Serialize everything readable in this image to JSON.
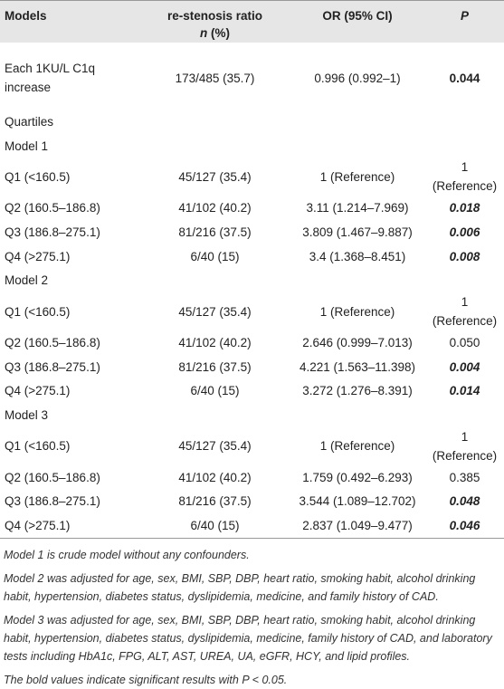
{
  "table": {
    "header": [
      "Models",
      {
        "text": "re-stenosis ratio",
        "variable": "n",
        "unit": "(%)"
      },
      "OR (95% CI)",
      "P"
    ],
    "rows": [
      [
        "Each 1KU/L C1q increase",
        "173/485 (35.7)",
        "0.996 (0.992–1)",
        "0.044"
      ],
      [
        "Quartiles"
      ],
      [
        "Model 1"
      ],
      [
        "Q1 (<160.5)",
        "45/127 (35.4)",
        "1 (Reference)",
        "1 (Reference)"
      ],
      [
        "Q2 (160.5–186.8)",
        "41/102 (40.2)",
        "3.11 (1.214–7.969)",
        "0.018"
      ],
      [
        "Q3 (186.8–275.1)",
        "81/216 (37.5)",
        "3.809 (1.467–9.887)",
        "0.006"
      ],
      [
        "Q4 (>275.1)",
        "6/40 (15)",
        "3.4 (1.368–8.451)",
        "0.008"
      ],
      [
        "Model 2"
      ],
      [
        "Q1 (<160.5)",
        "45/127 (35.4)",
        "1 (Reference)",
        "1 (Reference)"
      ],
      [
        "Q2 (160.5–186.8)",
        "41/102 (40.2)",
        "2.646 (0.999–7.013)",
        "0.050"
      ],
      [
        "Q3 (186.8–275.1)",
        "81/216 (37.5)",
        "4.221 (1.563–11.398)",
        "0.004"
      ],
      [
        "Q4 (>275.1)",
        "6/40 (15)",
        "3.272 (1.276–8.391)",
        "0.014"
      ],
      [
        "Model 3"
      ],
      [
        "Q1 (<160.5)",
        "45/127 (35.4)",
        "1 (Reference)",
        "1 (Reference)"
      ],
      [
        "Q2 (160.5–186.8)",
        "41/102 (40.2)",
        "1.759 (0.492–6.293)",
        "0.385"
      ],
      [
        "Q3 (186.8–275.1)",
        "81/216 (37.5)",
        "3.544 (1.089–12.702)",
        "0.048"
      ],
      [
        "Q4 (>275.1)",
        "6/40 (15)",
        "2.837 (1.049–9.477)",
        "0.046"
      ]
    ]
  },
  "footnotes": [
    "Model 1 is crude model without any confounders.",
    "Model 2 was adjusted for age, sex, BMI, SBP, DBP, heart ratio, smoking habit, alcohol drinking habit, hypertension, diabetes status, dyslipidemia, medicine, and family history of CAD.",
    "Model 3 was adjusted for age, sex, BMI, SBP, DBP, heart ratio, smoking habit, alcohol drinking habit, hypertension, diabetes status, dyslipidemia, medicine, family history of CAD, and laboratory tests including HbA1c, FPG, ALT, AST, UREA, UA, eGFR, HCY, and lipid profiles.",
    "The bold values indicate significant results with P < 0.05."
  ]
}
